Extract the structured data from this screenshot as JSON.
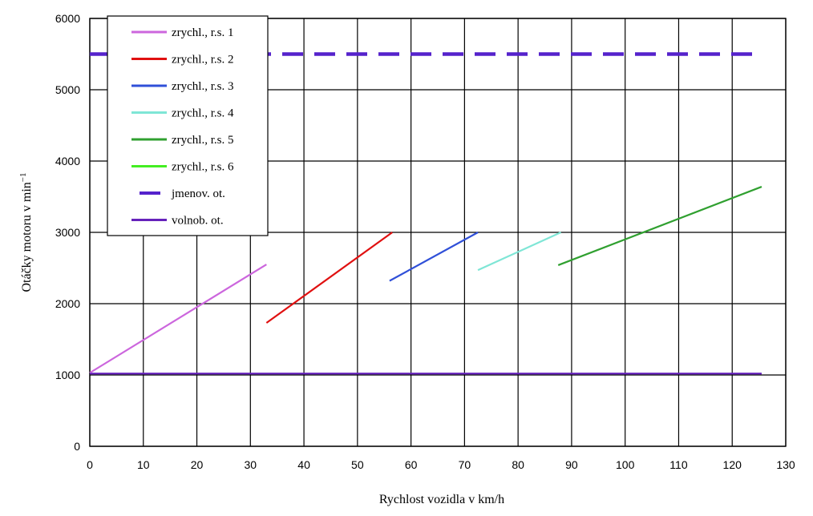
{
  "chart_data": {
    "type": "line",
    "xlabel": "Rychlost vozidla v km/h",
    "ylabel": "Otáčky motoru v min",
    "ylabel_sup": "−1",
    "xlim": [
      0,
      130
    ],
    "ylim": [
      0,
      6000
    ],
    "x_ticks": [
      "0",
      "10",
      "20",
      "30",
      "40",
      "50",
      "60",
      "70",
      "80",
      "90",
      "100",
      "110",
      "120",
      "130"
    ],
    "y_ticks": [
      "0",
      "1000",
      "2000",
      "3000",
      "4000",
      "5000",
      "6000"
    ],
    "grid": true,
    "legend_position": "top-left",
    "series": [
      {
        "name": "zrychl., r.s. 1",
        "color": "#cc66dd",
        "dash": false,
        "x": [
          0,
          33
        ],
        "y": [
          1030,
          2550
        ]
      },
      {
        "name": "zrychl., r.s. 2",
        "color": "#e01010",
        "dash": false,
        "x": [
          33,
          56.5
        ],
        "y": [
          1730,
          3000
        ]
      },
      {
        "name": "zrychl., r.s. 3",
        "color": "#3050d8",
        "dash": false,
        "x": [
          56,
          72.5
        ],
        "y": [
          2320,
          3000
        ]
      },
      {
        "name": "zrychl., r.s. 4",
        "color": "#7fe6d6",
        "dash": false,
        "x": [
          72.5,
          88
        ],
        "y": [
          2470,
          3000
        ]
      },
      {
        "name": "zrychl., r.s. 5",
        "color": "#30a030",
        "dash": false,
        "x": [
          87.5,
          125.5
        ],
        "y": [
          2540,
          3640
        ]
      },
      {
        "name": "zrychl., r.s. 6",
        "color": "#44ee22",
        "dash": false,
        "x": [],
        "y": []
      },
      {
        "name": "jmenov. ot.",
        "color": "#5522cc",
        "dash": true,
        "x": [
          0,
          125.5
        ],
        "y": [
          5500,
          5500
        ]
      },
      {
        "name": "volnob. ot.",
        "color": "#6622bb",
        "dash": false,
        "x": [
          0,
          125.5
        ],
        "y": [
          1020,
          1020
        ]
      }
    ]
  }
}
